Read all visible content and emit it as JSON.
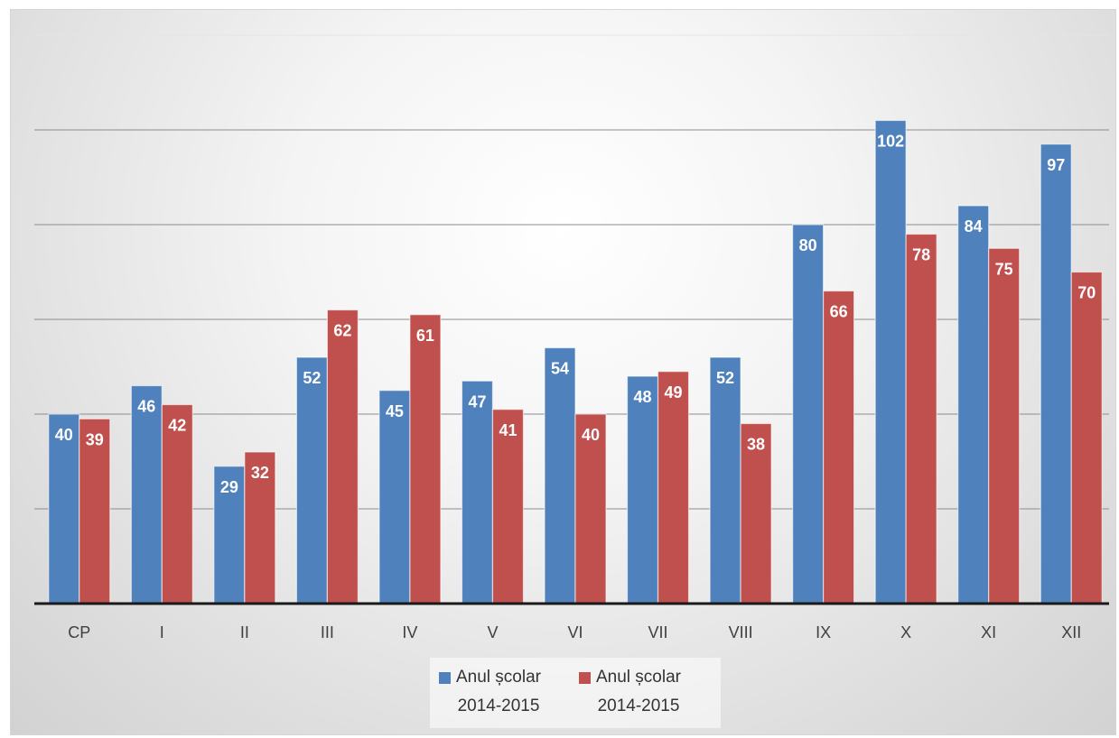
{
  "chart_data": {
    "type": "bar",
    "title": "",
    "xlabel": "",
    "ylabel": "",
    "ylim": [
      0,
      120
    ],
    "grid": true,
    "legend_position": "bottom",
    "categories": [
      "CP",
      "I",
      "II",
      "III",
      "IV",
      "V",
      "VI",
      "VII",
      "VIII",
      "IX",
      "X",
      "XI",
      "XII"
    ],
    "series": [
      {
        "name": "Anul școlar 2014-2015",
        "name_line1": "Anul școlar",
        "name_line2": "2014-2015",
        "color": "#4f81bd",
        "values": [
          40,
          46,
          29,
          52,
          45,
          47,
          54,
          48,
          52,
          80,
          102,
          84,
          97
        ]
      },
      {
        "name": "Anul școlar 2014-2015",
        "name_line1": "Anul școlar",
        "name_line2": "2014-2015",
        "color": "#c0504d",
        "values": [
          39,
          42,
          32,
          62,
          61,
          41,
          40,
          49,
          38,
          66,
          78,
          75,
          70
        ]
      }
    ]
  }
}
